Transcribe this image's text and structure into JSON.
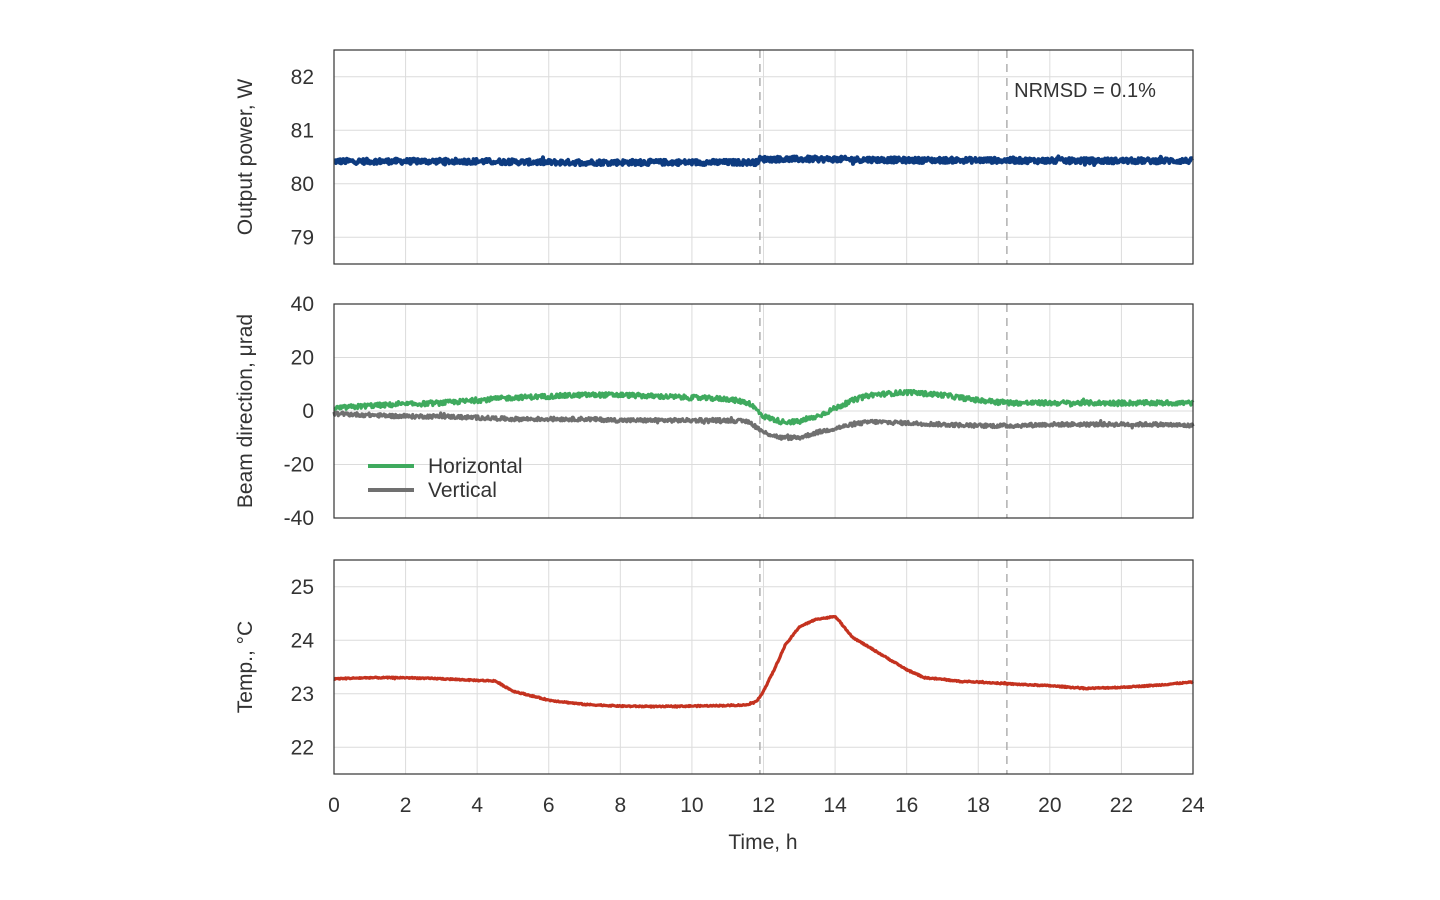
{
  "colors": {
    "power": "#0d3b80",
    "horizontal": "#3faa5e",
    "vertical": "#707070",
    "temperature": "#c4321f",
    "grid": "#dcdcdc",
    "frame": "#333333",
    "marker": "#b0b0b0"
  },
  "chart_data": [
    {
      "type": "line",
      "panel": "top",
      "ylabel": "Output power, W",
      "xlim": [
        0,
        24
      ],
      "ylim": [
        78.5,
        82.5
      ],
      "yticks": [
        79,
        80,
        81,
        82
      ],
      "grid": true,
      "annotation": "NRMSD = 0.1%",
      "event_markers_x": [
        11.9,
        18.8
      ],
      "series": [
        {
          "color_key": "power",
          "x": [
            0,
            2,
            4,
            6,
            8,
            10,
            11.8,
            11.9,
            14,
            16,
            18,
            20,
            22,
            24
          ],
          "y": [
            80.42,
            80.42,
            80.42,
            80.4,
            80.4,
            80.4,
            80.4,
            80.46,
            80.46,
            80.44,
            80.44,
            80.43,
            80.43,
            80.43
          ],
          "noise": 0.09
        }
      ]
    },
    {
      "type": "line",
      "panel": "middle",
      "ylabel": "Beam direction, μrad",
      "xlim": [
        0,
        24
      ],
      "ylim": [
        -40,
        40
      ],
      "yticks": [
        40,
        20,
        0,
        -20,
        -40
      ],
      "grid": true,
      "legend": {
        "position": "lower-left",
        "entries": [
          "Horizontal",
          "Vertical"
        ]
      },
      "event_markers_x": [
        11.9,
        18.8
      ],
      "series": [
        {
          "name": "Horizontal",
          "color_key": "horizontal",
          "x": [
            0,
            1,
            2,
            3,
            4,
            5,
            6,
            7,
            8,
            9,
            10,
            11,
            11.6,
            12,
            12.5,
            13,
            13.5,
            14,
            14.5,
            15,
            16,
            17,
            18,
            19,
            20,
            21,
            22,
            23,
            24
          ],
          "y": [
            1,
            2,
            2.5,
            3,
            4,
            5,
            5.5,
            6,
            6,
            5.5,
            5,
            4.5,
            3,
            -2,
            -4,
            -4,
            -2,
            1,
            4,
            6,
            7,
            6,
            4,
            3,
            3,
            3,
            3,
            3,
            3
          ],
          "noise": 1.6
        },
        {
          "name": "Vertical",
          "color_key": "vertical",
          "x": [
            0,
            1,
            2,
            3,
            4,
            5,
            6,
            7,
            8,
            9,
            10,
            11,
            11.6,
            12,
            12.5,
            13,
            13.5,
            14,
            14.5,
            15,
            16,
            17,
            18,
            19,
            20,
            21,
            22,
            23,
            24
          ],
          "y": [
            -1,
            -1.5,
            -2,
            -2,
            -2.5,
            -3,
            -3,
            -3,
            -3.5,
            -3.5,
            -3.5,
            -3.5,
            -4,
            -8,
            -10,
            -10,
            -8,
            -6.5,
            -5,
            -4,
            -4.5,
            -5,
            -5.5,
            -5.5,
            -5,
            -5,
            -5,
            -5,
            -5.5
          ],
          "noise": 1.3
        }
      ]
    },
    {
      "type": "line",
      "panel": "bottom",
      "xlabel": "Time, h",
      "ylabel": "Temp., °C",
      "xlim": [
        0,
        24
      ],
      "ylim": [
        21.5,
        25.5
      ],
      "xticks": [
        0,
        2,
        4,
        6,
        8,
        10,
        12,
        14,
        16,
        18,
        20,
        22,
        24
      ],
      "yticks": [
        22,
        23,
        24,
        25
      ],
      "grid": true,
      "event_markers_x": [
        11.9,
        18.8
      ],
      "series": [
        {
          "color_key": "temperature",
          "x": [
            0,
            1,
            2,
            3,
            4,
            4.5,
            5,
            6,
            7,
            8,
            9,
            10,
            11,
            11.5,
            11.8,
            12,
            12.3,
            12.6,
            13,
            13.5,
            13.8,
            14,
            14.5,
            15,
            15.5,
            16,
            16.5,
            17,
            17.5,
            18,
            19,
            20,
            21,
            22,
            23,
            24
          ],
          "y": [
            23.28,
            23.3,
            23.3,
            23.28,
            23.25,
            23.24,
            23.05,
            22.88,
            22.8,
            22.77,
            22.76,
            22.77,
            22.78,
            22.79,
            22.85,
            23.05,
            23.45,
            23.9,
            24.25,
            24.4,
            24.42,
            24.45,
            24.05,
            23.85,
            23.65,
            23.45,
            23.3,
            23.27,
            23.23,
            23.22,
            23.18,
            23.15,
            23.1,
            23.12,
            23.16,
            23.22
          ],
          "noise": 0.02
        }
      ]
    }
  ],
  "legend": {
    "horizontal_label": "Horizontal",
    "vertical_label": "Vertical"
  }
}
